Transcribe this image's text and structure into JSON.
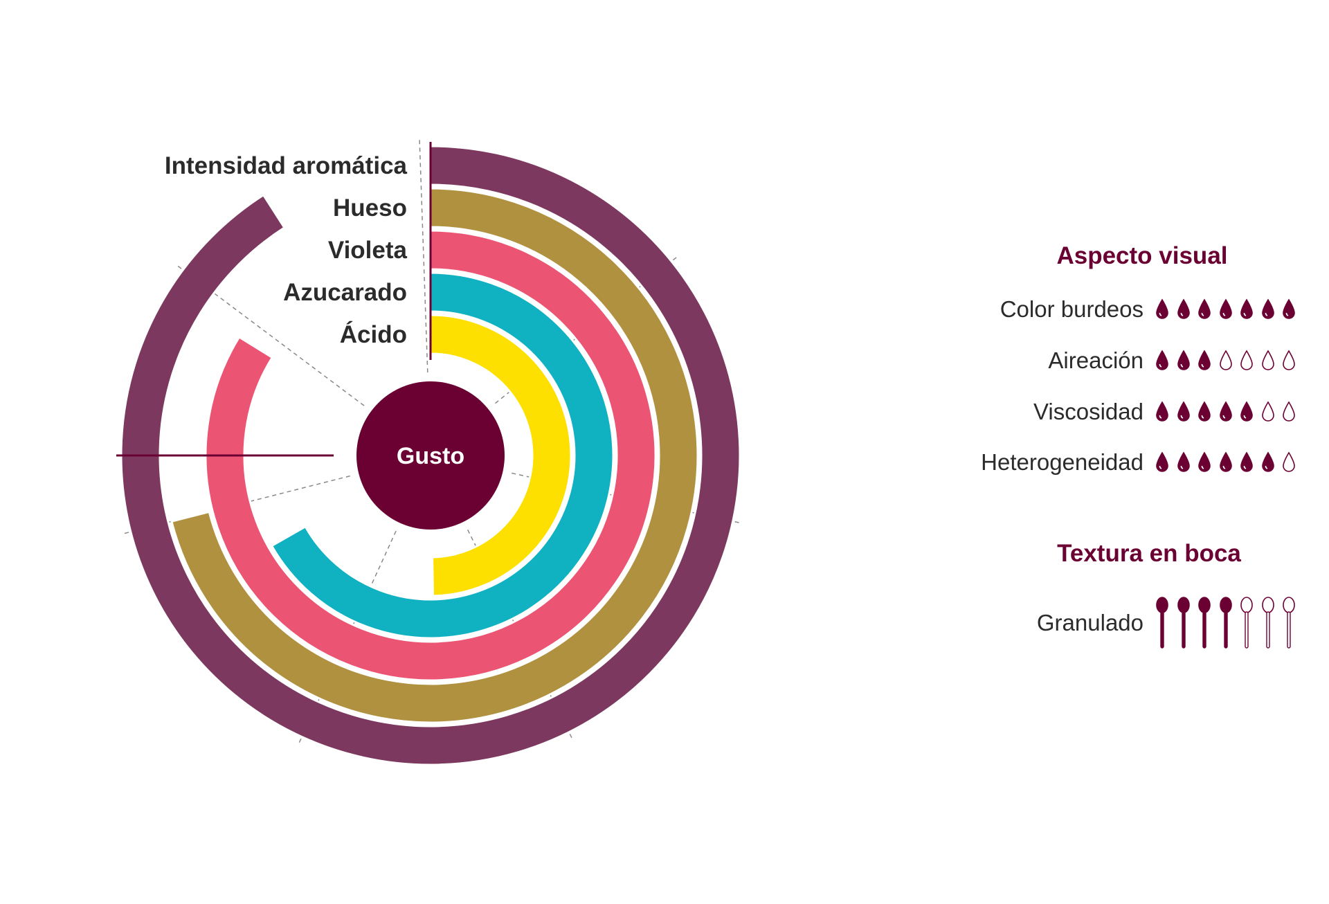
{
  "chart_data": {
    "type": "radial bar",
    "center_label": "Gusto",
    "scale_max": 7,
    "series": [
      {
        "name": "Intensidad aromática",
        "value": 6.4,
        "color": "#7d3860"
      },
      {
        "name": "Hueso",
        "value": 5.0,
        "color": "#b09140"
      },
      {
        "name": "Violeta",
        "value": 5.9,
        "color": "#ec5473"
      },
      {
        "name": "Azucarado",
        "value": 4.7,
        "color": "#10b2c2"
      },
      {
        "name": "Ácido",
        "value": 3.5,
        "color": "#fde000"
      }
    ]
  },
  "aspecto_visual": {
    "title": "Aspecto visual",
    "max": 7,
    "items": [
      {
        "label": "Color burdeos",
        "value": 7
      },
      {
        "label": "Aireación",
        "value": 3
      },
      {
        "label": "Viscosidad",
        "value": 5
      },
      {
        "label": "Heterogeneidad",
        "value": 6
      }
    ]
  },
  "textura": {
    "title": "Textura en boca",
    "max": 7,
    "items": [
      {
        "label": "Granulado",
        "value": 4
      }
    ]
  },
  "colors": {
    "accent": "#6b0033",
    "text": "#2b2b2b"
  }
}
